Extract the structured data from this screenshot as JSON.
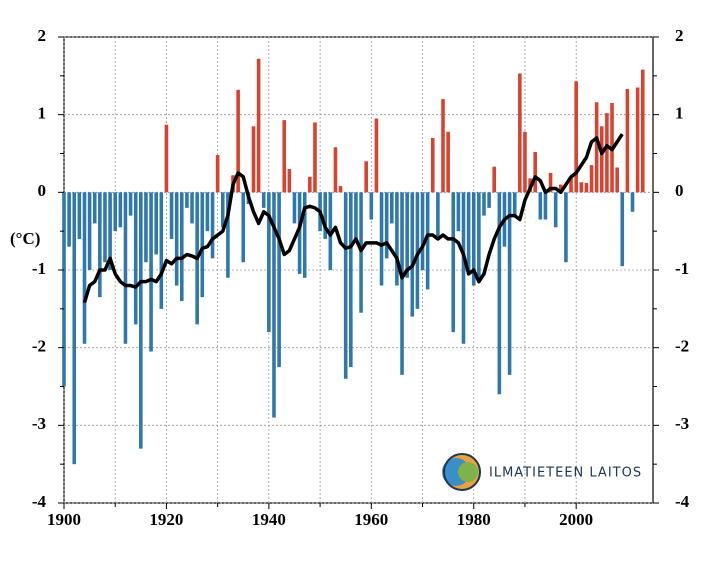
{
  "chart_data": {
    "type": "bar",
    "y_label": "(°C)",
    "logo_text": "ILMATIETEEN LAITOS",
    "xlim": [
      1900,
      2015
    ],
    "xticks": [
      1900,
      1920,
      1940,
      1960,
      1980,
      2000
    ],
    "ylim": [
      -4,
      2
    ],
    "yticks": [
      -4,
      -3,
      -2,
      -1,
      0,
      1,
      2
    ],
    "grid": true,
    "series": [
      {
        "type": "bar",
        "positive_color": "#d9422f",
        "negative_color": "#2f78ab",
        "x": [
          1900,
          1901,
          1902,
          1903,
          1904,
          1905,
          1906,
          1907,
          1908,
          1909,
          1910,
          1911,
          1912,
          1913,
          1914,
          1915,
          1916,
          1917,
          1918,
          1919,
          1920,
          1921,
          1922,
          1923,
          1924,
          1925,
          1926,
          1927,
          1928,
          1929,
          1930,
          1931,
          1932,
          1933,
          1934,
          1935,
          1936,
          1937,
          1938,
          1939,
          1940,
          1941,
          1942,
          1943,
          1944,
          1945,
          1946,
          1947,
          1948,
          1949,
          1950,
          1951,
          1952,
          1953,
          1954,
          1955,
          1956,
          1957,
          1958,
          1959,
          1960,
          1961,
          1962,
          1963,
          1964,
          1965,
          1966,
          1967,
          1968,
          1969,
          1970,
          1971,
          1972,
          1973,
          1974,
          1975,
          1976,
          1977,
          1978,
          1979,
          1980,
          1981,
          1982,
          1983,
          1984,
          1985,
          1986,
          1987,
          1988,
          1989,
          1990,
          1991,
          1992,
          1993,
          1994,
          1995,
          1996,
          1997,
          1998,
          1999,
          2000,
          2001,
          2002,
          2003,
          2004,
          2005,
          2006,
          2007,
          2008,
          2009,
          2010,
          2011,
          2012,
          2013
        ],
        "values": [
          -2.5,
          -0.7,
          -3.5,
          -0.6,
          -1.95,
          -1.0,
          -0.4,
          -1.35,
          -0.9,
          -1.0,
          -0.5,
          -0.45,
          -1.95,
          -0.3,
          -1.7,
          -3.3,
          -0.9,
          -2.05,
          -0.8,
          -1.5,
          0.87,
          -0.6,
          -1.2,
          -1.4,
          -0.2,
          -0.4,
          -1.7,
          -1.35,
          -0.5,
          -0.85,
          0.48,
          -0.45,
          -1.1,
          0.22,
          1.32,
          -0.9,
          -0.15,
          0.85,
          1.72,
          -0.2,
          -1.8,
          -2.9,
          -2.25,
          0.93,
          0.3,
          -0.4,
          -1.05,
          -1.1,
          0.2,
          0.9,
          -0.5,
          -0.6,
          -1.0,
          0.58,
          0.08,
          -2.4,
          -2.25,
          -0.6,
          -1.55,
          0.4,
          -0.35,
          0.95,
          -1.2,
          -0.85,
          -0.4,
          -1.2,
          -2.35,
          -1.1,
          -1.6,
          -1.5,
          -1.0,
          -1.25,
          0.7,
          -0.6,
          1.2,
          0.78,
          -1.8,
          -0.5,
          -1.95,
          -1.05,
          -1.2,
          -1.1,
          -0.3,
          -0.2,
          0.33,
          -2.6,
          -0.7,
          -2.35,
          -0.3,
          1.53,
          0.78,
          0.18,
          0.52,
          -0.35,
          -0.35,
          0.25,
          -0.45,
          0.1,
          -0.9,
          0.2,
          1.43,
          0.13,
          0.12,
          0.35,
          1.16,
          0.85,
          1.02,
          1.15,
          0.32,
          -0.95,
          1.33,
          -0.25,
          1.35,
          1.58
        ]
      },
      {
        "type": "line",
        "color": "#000000",
        "x": [
          1904,
          1905,
          1906,
          1907,
          1908,
          1909,
          1910,
          1911,
          1912,
          1913,
          1914,
          1915,
          1916,
          1917,
          1918,
          1919,
          1920,
          1921,
          1922,
          1923,
          1924,
          1925,
          1926,
          1927,
          1928,
          1929,
          1930,
          1931,
          1932,
          1933,
          1934,
          1935,
          1936,
          1937,
          1938,
          1939,
          1940,
          1941,
          1942,
          1943,
          1944,
          1945,
          1946,
          1947,
          1948,
          1949,
          1950,
          1951,
          1952,
          1953,
          1954,
          1955,
          1956,
          1957,
          1958,
          1959,
          1960,
          1961,
          1962,
          1963,
          1964,
          1965,
          1966,
          1967,
          1968,
          1969,
          1970,
          1971,
          1972,
          1973,
          1974,
          1975,
          1976,
          1977,
          1978,
          1979,
          1980,
          1981,
          1982,
          1983,
          1984,
          1985,
          1986,
          1987,
          1988,
          1989,
          1990,
          1991,
          1992,
          1993,
          1994,
          1995,
          1996,
          1997,
          1998,
          1999,
          2000,
          2001,
          2002,
          2003,
          2004,
          2005,
          2006,
          2007,
          2008,
          2009
        ],
        "values": [
          -1.42,
          -1.2,
          -1.15,
          -1.0,
          -1.0,
          -0.85,
          -1.05,
          -1.15,
          -1.2,
          -1.2,
          -1.22,
          -1.15,
          -1.15,
          -1.12,
          -1.15,
          -1.05,
          -0.88,
          -0.92,
          -0.85,
          -0.85,
          -0.8,
          -0.82,
          -0.85,
          -0.72,
          -0.7,
          -0.6,
          -0.55,
          -0.5,
          -0.3,
          0.1,
          0.25,
          0.2,
          -0.05,
          -0.25,
          -0.4,
          -0.25,
          -0.3,
          -0.45,
          -0.6,
          -0.8,
          -0.75,
          -0.6,
          -0.45,
          -0.2,
          -0.18,
          -0.2,
          -0.25,
          -0.45,
          -0.55,
          -0.45,
          -0.65,
          -0.72,
          -0.7,
          -0.6,
          -0.75,
          -0.65,
          -0.65,
          -0.65,
          -0.68,
          -0.65,
          -0.75,
          -0.85,
          -1.1,
          -1.0,
          -0.95,
          -0.8,
          -0.7,
          -0.55,
          -0.55,
          -0.6,
          -0.55,
          -0.6,
          -0.6,
          -0.65,
          -0.8,
          -1.05,
          -1.0,
          -1.15,
          -1.05,
          -0.8,
          -0.6,
          -0.45,
          -0.35,
          -0.3,
          -0.3,
          -0.35,
          -0.1,
          0.05,
          0.2,
          0.15,
          0.0,
          0.05,
          0.05,
          0.0,
          0.1,
          0.2,
          0.25,
          0.35,
          0.45,
          0.65,
          0.7,
          0.5,
          0.6,
          0.55,
          0.65,
          0.75
        ]
      }
    ]
  }
}
